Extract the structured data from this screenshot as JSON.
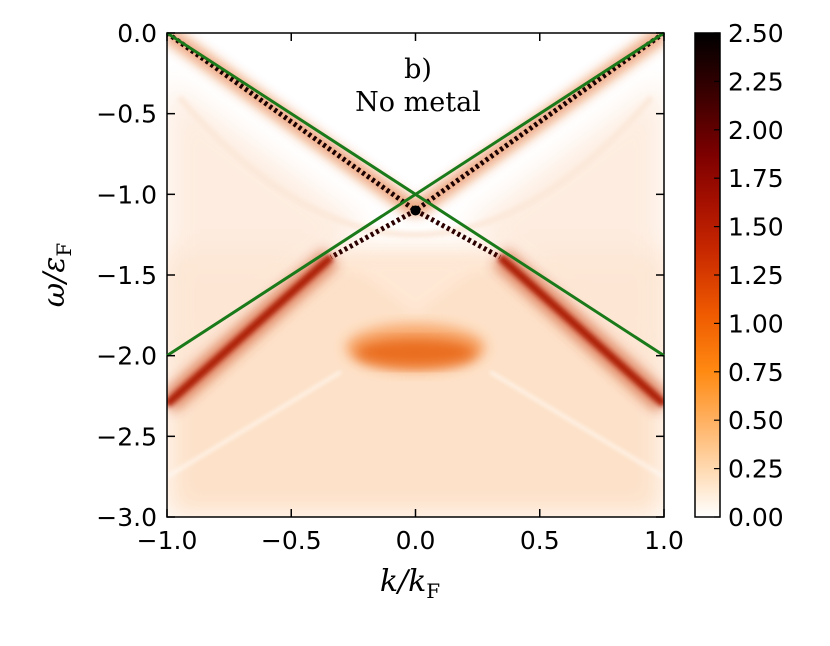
{
  "chart_data": {
    "type": "heatmap",
    "panel_label": "b)",
    "annotation": "No metal",
    "xlabel": {
      "main": "k/k",
      "sub": "F"
    },
    "ylabel": {
      "main": "ω/ε",
      "sub": "F"
    },
    "xlim": [
      -1.0,
      1.0
    ],
    "ylim": [
      -3.0,
      0.0
    ],
    "x_ticks": [
      -1.0,
      -0.5,
      0.0,
      0.5,
      1.0
    ],
    "x_tick_labels": [
      "−1.0",
      "−0.5",
      "0.0",
      "0.5",
      "1.0"
    ],
    "y_ticks": [
      0.0,
      -0.5,
      -1.0,
      -1.5,
      -2.0,
      -2.5,
      -3.0
    ],
    "y_tick_labels": [
      "0.0",
      "−0.5",
      "−1.0",
      "−1.5",
      "−2.0",
      "−2.5",
      "−3.0"
    ],
    "colorbar": {
      "range": [
        0.0,
        2.5
      ],
      "ticks": [
        0.0,
        0.25,
        0.5,
        0.75,
        1.0,
        1.25,
        1.5,
        1.75,
        2.0,
        2.25,
        2.5
      ],
      "tick_labels": [
        "0.00",
        "0.25",
        "0.50",
        "0.75",
        "1.00",
        "1.25",
        "1.50",
        "1.75",
        "2.00",
        "2.25",
        "2.50"
      ],
      "colormap": "gist_heat_r"
    },
    "overlay_lines": [
      {
        "color": "#1a7a1a",
        "points": [
          [
            -1.0,
            0.0
          ],
          [
            1.0,
            -2.0
          ]
        ]
      },
      {
        "color": "#1a7a1a",
        "points": [
          [
            -1.0,
            -2.0
          ],
          [
            1.0,
            0.0
          ]
        ]
      }
    ],
    "features": {
      "sharp_peaks": {
        "k_range": [
          -0.34,
          0.34
        ],
        "description_free": true
      },
      "crossing_point": [
        0.0,
        -1.1
      ],
      "broad_band_center": [
        0.0,
        -1.95
      ]
    }
  }
}
